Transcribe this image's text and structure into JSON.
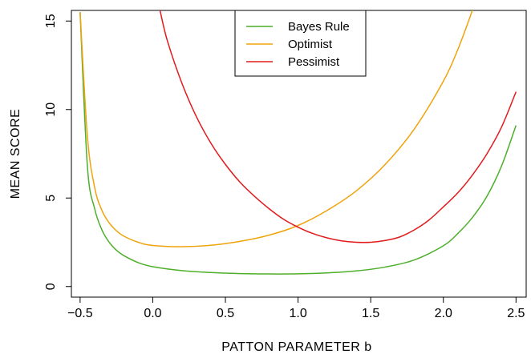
{
  "chart_data": {
    "type": "line",
    "xlabel": "PATTON  PARAMETER  b",
    "ylabel": "MEAN  SCORE",
    "xlim": [
      -0.56,
      2.57
    ],
    "ylim": [
      -0.6,
      15.6
    ],
    "x_ticks": [
      -0.5,
      0.0,
      0.5,
      1.0,
      1.5,
      2.0,
      2.5
    ],
    "x_tick_labels": [
      "−0.5",
      "0.0",
      "0.5",
      "1.0",
      "1.5",
      "2.0",
      "2.5"
    ],
    "y_ticks": [
      0,
      5,
      10,
      15
    ],
    "y_tick_labels": [
      "0",
      "5",
      "10",
      "15"
    ],
    "grid": false,
    "legend_position": "top-center",
    "series": [
      {
        "name": "Bayes Rule",
        "color": "#4daf2a",
        "x": [
          -0.5,
          -0.45,
          -0.4,
          -0.35,
          -0.3,
          -0.25,
          -0.2,
          -0.1,
          0.0,
          0.2,
          0.4,
          0.6,
          0.8,
          1.0,
          1.2,
          1.4,
          1.6,
          1.8,
          2.0,
          2.1,
          2.2,
          2.3,
          2.4,
          2.5
        ],
        "y": [
          15.5,
          6.8,
          4.4,
          3.2,
          2.5,
          2.05,
          1.75,
          1.35,
          1.12,
          0.9,
          0.79,
          0.73,
          0.71,
          0.72,
          0.77,
          0.88,
          1.1,
          1.5,
          2.3,
          3.0,
          3.9,
          5.1,
          6.8,
          9.1
        ]
      },
      {
        "name": "Optimist",
        "color": "#f0a30a",
        "x": [
          -0.5,
          -0.45,
          -0.4,
          -0.35,
          -0.3,
          -0.25,
          -0.2,
          -0.1,
          0.0,
          0.2,
          0.4,
          0.6,
          0.8,
          1.0,
          1.2,
          1.4,
          1.6,
          1.8,
          2.0,
          2.1,
          2.2
        ],
        "y": [
          15.5,
          8.5,
          5.6,
          4.3,
          3.6,
          3.15,
          2.85,
          2.5,
          2.32,
          2.25,
          2.33,
          2.55,
          2.9,
          3.45,
          4.3,
          5.4,
          6.9,
          8.9,
          11.6,
          13.4,
          15.6
        ]
      },
      {
        "name": "Pessimist",
        "color": "#e31a1c",
        "x": [
          0.05,
          0.1,
          0.2,
          0.3,
          0.4,
          0.5,
          0.6,
          0.7,
          0.8,
          0.9,
          1.0,
          1.1,
          1.2,
          1.3,
          1.4,
          1.5,
          1.6,
          1.7,
          1.8,
          1.9,
          2.0,
          2.1,
          2.2,
          2.3,
          2.4,
          2.5
        ],
        "y": [
          15.6,
          13.9,
          11.5,
          9.6,
          8.1,
          6.9,
          5.9,
          5.1,
          4.4,
          3.8,
          3.35,
          3.0,
          2.75,
          2.58,
          2.5,
          2.5,
          2.6,
          2.8,
          3.2,
          3.75,
          4.5,
          5.3,
          6.3,
          7.5,
          9.0,
          11.0
        ]
      }
    ]
  }
}
